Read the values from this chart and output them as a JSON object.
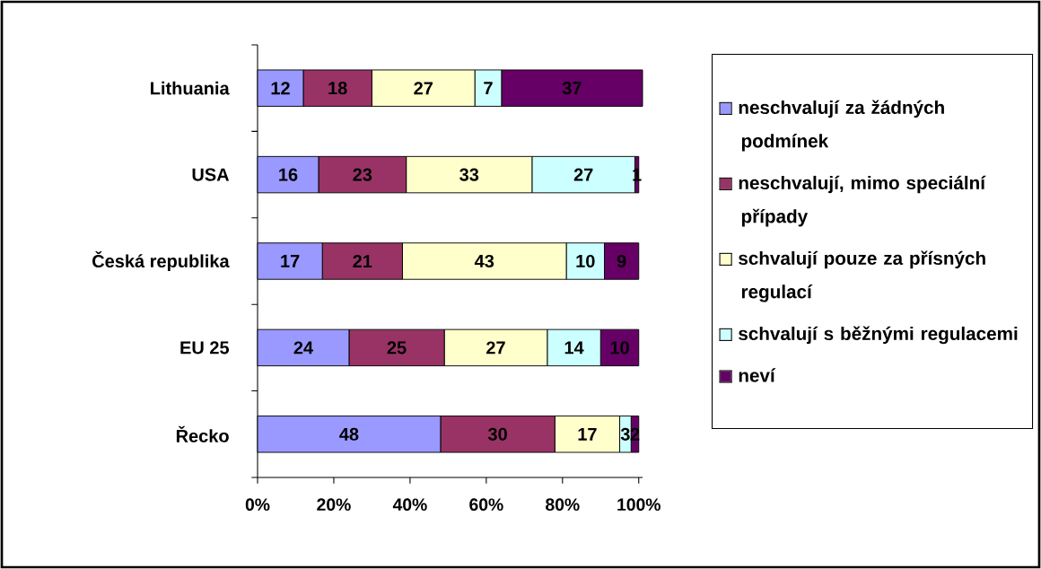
{
  "chart_data": {
    "type": "bar",
    "orientation": "horizontal",
    "stacked": true,
    "data_labels": true,
    "legend": "right",
    "categories": [
      "Lithuania",
      "USA",
      "Česká republika",
      "EU 25",
      "Řecko"
    ],
    "series": [
      {
        "name": "neschvalují za žádných podmínek",
        "color": "#9999ff",
        "values": [
          12,
          16,
          17,
          24,
          48
        ]
      },
      {
        "name": "neschvalují, mimo speciální případy",
        "color": "#993366",
        "values": [
          18,
          23,
          21,
          25,
          30
        ]
      },
      {
        "name": "schvalují pouze za přísných regulací",
        "color": "#ffffcc",
        "values": [
          27,
          33,
          43,
          27,
          17
        ]
      },
      {
        "name": "schvalují s běžnými regulacemi",
        "color": "#ccffff",
        "values": [
          7,
          27,
          10,
          14,
          3
        ]
      },
      {
        "name": "neví",
        "color": "#660066",
        "values": [
          37,
          1,
          9,
          10,
          2
        ]
      }
    ],
    "xlim": [
      0,
      101
    ],
    "xticks": [
      {
        "value": 0,
        "label": "0%"
      },
      {
        "value": 20,
        "label": "20%"
      },
      {
        "value": 40,
        "label": "40%"
      },
      {
        "value": 60,
        "label": "60%"
      },
      {
        "value": 80,
        "label": "80%"
      },
      {
        "value": 100,
        "label": "100%"
      }
    ]
  }
}
